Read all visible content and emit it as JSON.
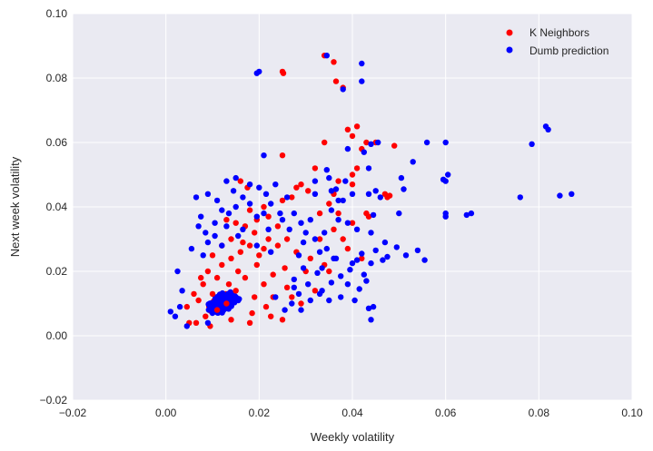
{
  "chart_data": {
    "type": "scatter",
    "title": "",
    "xlabel": "Weekly volatility",
    "ylabel": "Next week volatility",
    "xlim": [
      -0.02,
      0.1
    ],
    "ylim": [
      -0.02,
      0.1
    ],
    "xticks": [
      -0.02,
      0.0,
      0.02,
      0.04,
      0.06,
      0.08,
      0.1
    ],
    "yticks": [
      -0.02,
      0.0,
      0.02,
      0.04,
      0.06,
      0.08,
      0.1
    ],
    "xtick_labels": [
      "−0.02",
      "0.00",
      "0.02",
      "0.04",
      "0.06",
      "0.08",
      "0.10"
    ],
    "ytick_labels": [
      "−0.02",
      "0.00",
      "0.02",
      "0.04",
      "0.06",
      "0.08",
      "0.10"
    ],
    "grid": true,
    "background": "#eaeaf2",
    "legend_position": "top-right",
    "series": [
      {
        "name": "K Neighbors",
        "color": "#ff0000",
        "points": [
          [
            0.034,
            0.087
          ],
          [
            0.036,
            0.085
          ],
          [
            0.025,
            0.082
          ],
          [
            0.0252,
            0.0815
          ],
          [
            0.038,
            0.077
          ],
          [
            0.0365,
            0.079
          ],
          [
            0.041,
            0.065
          ],
          [
            0.039,
            0.064
          ],
          [
            0.043,
            0.06
          ],
          [
            0.049,
            0.059
          ],
          [
            0.034,
            0.06
          ],
          [
            0.025,
            0.056
          ],
          [
            0.04,
            0.062
          ],
          [
            0.042,
            0.058
          ],
          [
            0.04,
            0.05
          ],
          [
            0.041,
            0.052
          ],
          [
            0.04,
            0.047
          ],
          [
            0.037,
            0.048
          ],
          [
            0.047,
            0.044
          ],
          [
            0.0475,
            0.043
          ],
          [
            0.048,
            0.0435
          ],
          [
            0.043,
            0.038
          ],
          [
            0.0435,
            0.037
          ],
          [
            0.029,
            0.047
          ],
          [
            0.027,
            0.043
          ],
          [
            0.028,
            0.046
          ],
          [
            0.0305,
            0.045
          ],
          [
            0.032,
            0.052
          ],
          [
            0.036,
            0.044
          ],
          [
            0.035,
            0.041
          ],
          [
            0.033,
            0.038
          ],
          [
            0.037,
            0.038
          ],
          [
            0.036,
            0.033
          ],
          [
            0.0175,
            0.046
          ],
          [
            0.016,
            0.048
          ],
          [
            0.018,
            0.039
          ],
          [
            0.0195,
            0.036
          ],
          [
            0.021,
            0.04
          ],
          [
            0.022,
            0.037
          ],
          [
            0.025,
            0.042
          ],
          [
            0.024,
            0.034
          ],
          [
            0.022,
            0.03
          ],
          [
            0.021,
            0.027
          ],
          [
            0.019,
            0.032
          ],
          [
            0.017,
            0.034
          ],
          [
            0.015,
            0.035
          ],
          [
            0.013,
            0.036
          ],
          [
            0.014,
            0.03
          ],
          [
            0.0165,
            0.029
          ],
          [
            0.02,
            0.025
          ],
          [
            0.024,
            0.028
          ],
          [
            0.026,
            0.03
          ],
          [
            0.028,
            0.026
          ],
          [
            0.031,
            0.024
          ],
          [
            0.03,
            0.02
          ],
          [
            0.034,
            0.022
          ],
          [
            0.039,
            0.027
          ],
          [
            0.042,
            0.024
          ],
          [
            0.026,
            0.015
          ],
          [
            0.027,
            0.012
          ],
          [
            0.025,
            0.005
          ],
          [
            0.029,
            0.01
          ],
          [
            0.032,
            0.014
          ],
          [
            0.035,
            0.02
          ],
          [
            0.038,
            0.03
          ],
          [
            0.04,
            0.035
          ],
          [
            0.0255,
            0.021
          ],
          [
            0.023,
            0.019
          ],
          [
            0.012,
            0.022
          ],
          [
            0.011,
            0.018
          ],
          [
            0.01,
            0.013
          ],
          [
            0.009,
            0.02
          ],
          [
            0.008,
            0.016
          ],
          [
            0.007,
            0.011
          ],
          [
            0.0085,
            0.006
          ],
          [
            0.0065,
            0.004
          ],
          [
            0.011,
            0.008
          ],
          [
            0.013,
            0.01
          ],
          [
            0.015,
            0.014
          ],
          [
            0.017,
            0.018
          ],
          [
            0.019,
            0.012
          ],
          [
            0.021,
            0.016
          ],
          [
            0.023,
            0.012
          ],
          [
            0.014,
            0.024
          ],
          [
            0.016,
            0.026
          ],
          [
            0.018,
            0.028
          ],
          [
            0.0195,
            0.022
          ],
          [
            0.0155,
            0.02
          ],
          [
            0.012,
            0.028
          ],
          [
            0.01,
            0.025
          ],
          [
            0.0135,
            0.016
          ],
          [
            0.0215,
            0.009
          ],
          [
            0.0185,
            0.007
          ],
          [
            0.005,
            0.004
          ],
          [
            0.0045,
            0.009
          ],
          [
            0.006,
            0.013
          ],
          [
            0.0075,
            0.018
          ],
          [
            0.0095,
            0.003
          ],
          [
            0.014,
            0.005
          ],
          [
            0.018,
            0.004
          ],
          [
            0.0225,
            0.006
          ],
          [
            0.045,
            0.06
          ],
          [
            0.033,
            0.03
          ]
        ]
      },
      {
        "name": "Dumb prediction",
        "color": "#0000ff",
        "points": [
          [
            0.0345,
            0.087
          ],
          [
            0.042,
            0.0845
          ],
          [
            0.0195,
            0.0815
          ],
          [
            0.02,
            0.082
          ],
          [
            0.042,
            0.079
          ],
          [
            0.038,
            0.0765
          ],
          [
            0.0815,
            0.065
          ],
          [
            0.082,
            0.064
          ],
          [
            0.0785,
            0.0595
          ],
          [
            0.056,
            0.06
          ],
          [
            0.06,
            0.06
          ],
          [
            0.0455,
            0.06
          ],
          [
            0.044,
            0.0595
          ],
          [
            0.039,
            0.058
          ],
          [
            0.0425,
            0.057
          ],
          [
            0.053,
            0.054
          ],
          [
            0.0435,
            0.052
          ],
          [
            0.0345,
            0.0515
          ],
          [
            0.0605,
            0.05
          ],
          [
            0.06,
            0.048
          ],
          [
            0.0505,
            0.049
          ],
          [
            0.0595,
            0.0485
          ],
          [
            0.0385,
            0.048
          ],
          [
            0.045,
            0.045
          ],
          [
            0.0435,
            0.044
          ],
          [
            0.087,
            0.044
          ],
          [
            0.0845,
            0.0435
          ],
          [
            0.076,
            0.043
          ],
          [
            0.04,
            0.044
          ],
          [
            0.037,
            0.042
          ],
          [
            0.06,
            0.038
          ],
          [
            0.06,
            0.037
          ],
          [
            0.0645,
            0.0375
          ],
          [
            0.0655,
            0.038
          ],
          [
            0.05,
            0.038
          ],
          [
            0.0445,
            0.0375
          ],
          [
            0.02,
            0.046
          ],
          [
            0.021,
            0.056
          ],
          [
            0.035,
            0.049
          ],
          [
            0.032,
            0.048
          ],
          [
            0.044,
            0.032
          ],
          [
            0.047,
            0.029
          ],
          [
            0.042,
            0.0255
          ],
          [
            0.0495,
            0.0275
          ],
          [
            0.054,
            0.0265
          ],
          [
            0.0515,
            0.025
          ],
          [
            0.0475,
            0.0245
          ],
          [
            0.0465,
            0.0235
          ],
          [
            0.0555,
            0.0235
          ],
          [
            0.045,
            0.0265
          ],
          [
            0.044,
            0.0225
          ],
          [
            0.04,
            0.0225
          ],
          [
            0.0395,
            0.0205
          ],
          [
            0.0425,
            0.019
          ],
          [
            0.0415,
            0.0145
          ],
          [
            0.043,
            0.017
          ],
          [
            0.0375,
            0.0185
          ],
          [
            0.0355,
            0.0165
          ],
          [
            0.0365,
            0.024
          ],
          [
            0.0345,
            0.027
          ],
          [
            0.033,
            0.026
          ],
          [
            0.0325,
            0.0195
          ],
          [
            0.0295,
            0.021
          ],
          [
            0.0305,
            0.016
          ],
          [
            0.0275,
            0.0175
          ],
          [
            0.0275,
            0.015
          ],
          [
            0.0335,
            0.014
          ],
          [
            0.033,
            0.013
          ],
          [
            0.035,
            0.011
          ],
          [
            0.0375,
            0.012
          ],
          [
            0.039,
            0.016
          ],
          [
            0.0405,
            0.011
          ],
          [
            0.0445,
            0.009
          ],
          [
            0.044,
            0.005
          ],
          [
            0.0435,
            0.0085
          ],
          [
            0.041,
            0.0235
          ],
          [
            0.039,
            0.035
          ],
          [
            0.041,
            0.033
          ],
          [
            0.038,
            0.042
          ],
          [
            0.0355,
            0.045
          ],
          [
            0.037,
            0.036
          ],
          [
            0.0355,
            0.039
          ],
          [
            0.034,
            0.032
          ],
          [
            0.031,
            0.036
          ],
          [
            0.029,
            0.035
          ],
          [
            0.032,
            0.03
          ],
          [
            0.0295,
            0.029
          ],
          [
            0.0265,
            0.033
          ],
          [
            0.0275,
            0.038
          ],
          [
            0.0245,
            0.038
          ],
          [
            0.0225,
            0.041
          ],
          [
            0.021,
            0.038
          ],
          [
            0.022,
            0.033
          ],
          [
            0.0195,
            0.037
          ],
          [
            0.018,
            0.041
          ],
          [
            0.0165,
            0.043
          ],
          [
            0.015,
            0.04
          ],
          [
            0.0135,
            0.038
          ],
          [
            0.011,
            0.042
          ],
          [
            0.009,
            0.044
          ],
          [
            0.0075,
            0.037
          ],
          [
            0.0065,
            0.043
          ],
          [
            0.007,
            0.034
          ],
          [
            0.0055,
            0.027
          ],
          [
            0.0025,
            0.02
          ],
          [
            0.0035,
            0.014
          ],
          [
            0.003,
            0.009
          ],
          [
            0.001,
            0.0075
          ],
          [
            0.002,
            0.006
          ],
          [
            0.0045,
            0.003
          ],
          [
            0.009,
            0.004
          ],
          [
            0.012,
            0.028
          ],
          [
            0.013,
            0.034
          ],
          [
            0.0105,
            0.031
          ],
          [
            0.009,
            0.029
          ],
          [
            0.008,
            0.025
          ],
          [
            0.013,
            0.048
          ],
          [
            0.018,
            0.047
          ],
          [
            0.015,
            0.049
          ],
          [
            0.0235,
            0.047
          ],
          [
            0.0215,
            0.044
          ],
          [
            0.026,
            0.043
          ],
          [
            0.025,
            0.036
          ],
          [
            0.03,
            0.032
          ],
          [
            0.0285,
            0.025
          ],
          [
            0.031,
            0.011
          ],
          [
            0.029,
            0.008
          ],
          [
            0.027,
            0.01
          ],
          [
            0.0255,
            0.008
          ],
          [
            0.0235,
            0.012
          ],
          [
            0.0285,
            0.013
          ],
          [
            0.0335,
            0.021
          ],
          [
            0.036,
            0.024
          ],
          [
            0.0195,
            0.028
          ],
          [
            0.0225,
            0.026
          ],
          [
            0.0155,
            0.031
          ],
          [
            0.0165,
            0.033
          ],
          [
            0.0105,
            0.035
          ],
          [
            0.012,
            0.039
          ],
          [
            0.0085,
            0.032
          ],
          [
            0.046,
            0.043
          ],
          [
            0.0365,
            0.0455
          ],
          [
            0.032,
            0.044
          ],
          [
            0.051,
            0.0455
          ],
          [
            0.0145,
            0.045
          ]
        ]
      }
    ]
  }
}
